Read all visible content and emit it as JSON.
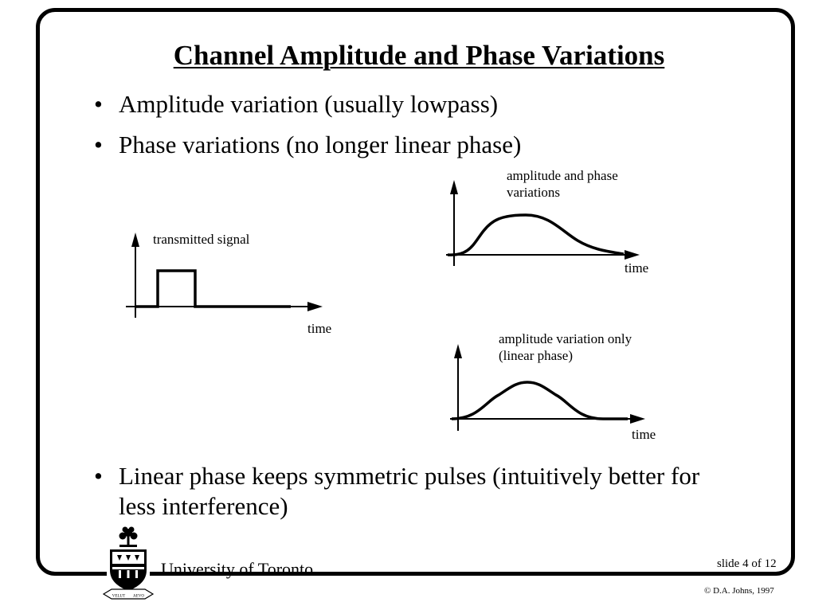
{
  "slide": {
    "title": "Channel Amplitude and Phase Variations",
    "bullets": [
      "Amplitude variation (usually lowpass)",
      "Phase variations (no longer linear phase)"
    ],
    "bottom_bullet": {
      "line1": "Linear phase keeps symmetric pulses (intuitively better for",
      "line2": "less interference)"
    },
    "bullet_symbol": "•"
  },
  "figures": {
    "transmitted": {
      "label": "transmitted signal",
      "axis_label": "time"
    },
    "amp_phase": {
      "label_line1": "amplitude and phase",
      "label_line2": "variations",
      "axis_label": "time"
    },
    "amp_only": {
      "label_line1": "amplitude variation only",
      "label_line2": "(linear phase)",
      "axis_label": "time"
    }
  },
  "footer": {
    "university": "University of Toronto",
    "slide_number": "slide 4 of 12",
    "copyright": "© D.A. Johns, 1997",
    "crest_motto_left": "VELUT",
    "crest_motto_right": "AEVO"
  }
}
